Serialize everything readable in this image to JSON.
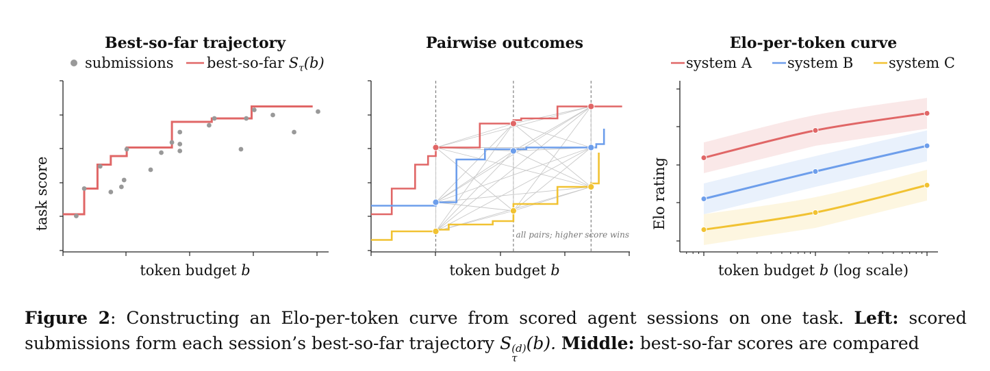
{
  "colors": {
    "red": "#e06666",
    "blue": "#6d9eeb",
    "gold": "#f1c232",
    "gray": "#999999",
    "pairline": "#c8c8c8",
    "axis": "#222222"
  },
  "chart_data": [
    {
      "type": "line",
      "title": "Best-so-far trajectory",
      "legend": {
        "placement": "top",
        "entries": [
          "submissions",
          "best-so-far"
        ],
        "bsf_symbol": "S",
        "bsf_sub": "τ",
        "bsf_arg": "(b)"
      },
      "xlabel": "token budget",
      "xlabel_var": "b",
      "ylabel": "task score",
      "xlim": [
        0,
        1
      ],
      "ylim": [
        0,
        1
      ],
      "submissions": [
        [
          0.05,
          0.21
        ],
        [
          0.08,
          0.37
        ],
        [
          0.14,
          0.5
        ],
        [
          0.18,
          0.35
        ],
        [
          0.22,
          0.38
        ],
        [
          0.23,
          0.42
        ],
        [
          0.24,
          0.6
        ],
        [
          0.33,
          0.48
        ],
        [
          0.37,
          0.58
        ],
        [
          0.41,
          0.64
        ],
        [
          0.44,
          0.7
        ],
        [
          0.44,
          0.63
        ],
        [
          0.44,
          0.59
        ],
        [
          0.55,
          0.74
        ],
        [
          0.57,
          0.78
        ],
        [
          0.67,
          0.6
        ],
        [
          0.69,
          0.78
        ],
        [
          0.72,
          0.83
        ],
        [
          0.79,
          0.8
        ],
        [
          0.87,
          0.7
        ],
        [
          0.96,
          0.82
        ]
      ],
      "best_so_far": [
        [
          0.0,
          0.22
        ],
        [
          0.08,
          0.22
        ],
        [
          0.08,
          0.37
        ],
        [
          0.13,
          0.37
        ],
        [
          0.13,
          0.51
        ],
        [
          0.18,
          0.51
        ],
        [
          0.18,
          0.56
        ],
        [
          0.24,
          0.56
        ],
        [
          0.24,
          0.61
        ],
        [
          0.41,
          0.61
        ],
        [
          0.41,
          0.76
        ],
        [
          0.56,
          0.76
        ],
        [
          0.56,
          0.78
        ],
        [
          0.71,
          0.78
        ],
        [
          0.71,
          0.85
        ],
        [
          0.94,
          0.85
        ]
      ]
    },
    {
      "type": "line",
      "title": "Pairwise outcomes",
      "xlabel": "token budget",
      "xlabel_var": "b",
      "annotation": "all pairs; higher score wins",
      "xlim": [
        0,
        1
      ],
      "ylim": [
        0,
        1
      ],
      "checkpoints": [
        0.25,
        0.55,
        0.85
      ],
      "series": [
        {
          "color": "red",
          "steps": [
            [
              0.0,
              0.22
            ],
            [
              0.08,
              0.22
            ],
            [
              0.08,
              0.37
            ],
            [
              0.17,
              0.37
            ],
            [
              0.17,
              0.51
            ],
            [
              0.22,
              0.51
            ],
            [
              0.22,
              0.56
            ],
            [
              0.25,
              0.56
            ],
            [
              0.25,
              0.61
            ],
            [
              0.42,
              0.61
            ],
            [
              0.42,
              0.75
            ],
            [
              0.55,
              0.75
            ],
            [
              0.55,
              0.77
            ],
            [
              0.58,
              0.77
            ],
            [
              0.58,
              0.78
            ],
            [
              0.72,
              0.78
            ],
            [
              0.72,
              0.85
            ],
            [
              0.97,
              0.85
            ]
          ],
          "points": [
            [
              0.25,
              0.61
            ],
            [
              0.55,
              0.75
            ],
            [
              0.85,
              0.85
            ]
          ]
        },
        {
          "color": "blue",
          "steps": [
            [
              0.0,
              0.27
            ],
            [
              0.25,
              0.27
            ],
            [
              0.25,
              0.29
            ],
            [
              0.33,
              0.29
            ],
            [
              0.33,
              0.54
            ],
            [
              0.44,
              0.54
            ],
            [
              0.44,
              0.6
            ],
            [
              0.6,
              0.6
            ],
            [
              0.6,
              0.61
            ],
            [
              0.87,
              0.61
            ],
            [
              0.87,
              0.63
            ],
            [
              0.9,
              0.63
            ],
            [
              0.9,
              0.72
            ]
          ],
          "points": [
            [
              0.25,
              0.29
            ],
            [
              0.55,
              0.59
            ],
            [
              0.85,
              0.61
            ]
          ]
        },
        {
          "color": "gold",
          "steps": [
            [
              0.0,
              0.07
            ],
            [
              0.08,
              0.07
            ],
            [
              0.08,
              0.12
            ],
            [
              0.25,
              0.12
            ],
            [
              0.25,
              0.13
            ],
            [
              0.3,
              0.13
            ],
            [
              0.3,
              0.16
            ],
            [
              0.47,
              0.16
            ],
            [
              0.47,
              0.18
            ],
            [
              0.55,
              0.18
            ],
            [
              0.55,
              0.28
            ],
            [
              0.72,
              0.28
            ],
            [
              0.72,
              0.38
            ],
            [
              0.85,
              0.38
            ],
            [
              0.85,
              0.4
            ],
            [
              0.88,
              0.4
            ],
            [
              0.88,
              0.58
            ]
          ],
          "points": [
            [
              0.25,
              0.12
            ],
            [
              0.55,
              0.24
            ],
            [
              0.85,
              0.38
            ]
          ]
        }
      ]
    },
    {
      "type": "line",
      "title": "Elo-per-token curve",
      "legend": {
        "placement": "top",
        "entries": [
          "system A",
          "system B",
          "system C"
        ]
      },
      "xlabel": "token budget",
      "xlabel_var": "b",
      "xlabel_suffix": "(log scale)",
      "ylabel": "Elo rating",
      "xscale": "log",
      "grid": false,
      "xlim": [
        0,
        2.1
      ],
      "ylim": [
        0,
        1
      ],
      "x": [
        0,
        1,
        2
      ],
      "series": [
        {
          "name": "system A",
          "color": "red",
          "values": [
            0.55,
            0.71,
            0.81
          ],
          "band": 0.09
        },
        {
          "name": "system B",
          "color": "blue",
          "values": [
            0.31,
            0.47,
            0.62
          ],
          "band": 0.09
        },
        {
          "name": "system C",
          "color": "gold",
          "values": [
            0.13,
            0.23,
            0.39
          ],
          "band": 0.09
        }
      ]
    }
  ],
  "caption": {
    "label": "Figure 2",
    "sep": ":",
    "text1": " Constructing an Elo-per-token curve from scored agent sessions on one task. ",
    "left_label": "Left:",
    "text2": " scored submissions form each session’s best-so-far trajectory ",
    "math_base": "S",
    "math_sup": "(d)",
    "math_sub": "τ",
    "math_arg": "(b).",
    "middle_label": "Middle:",
    "text3": " best-so-far scores are compared"
  }
}
